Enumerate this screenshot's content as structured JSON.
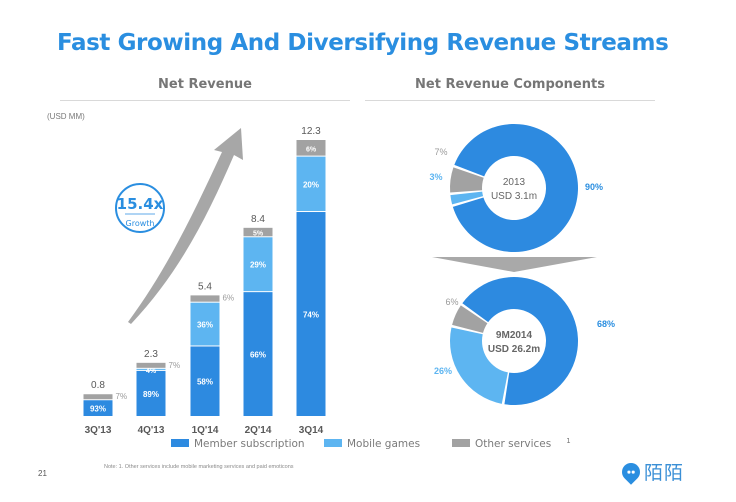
{
  "slide": {
    "title": "Fast Growing And Diversifying Revenue Streams",
    "page_number": "21",
    "footnote": "Note: 1. Other services include mobile marketing services and paid emoticons",
    "logo_text": "陌陌",
    "colors": {
      "title": "#2a8ee0",
      "member": "#2d8ae0",
      "mobile": "#5db5f1",
      "other": "#a2a2a2"
    }
  },
  "chart_data": [
    {
      "type": "bar",
      "stacked": true,
      "title": "Net Revenue",
      "unit_label": "(USD MM)",
      "categories": [
        "3Q'13",
        "4Q'13",
        "1Q'14",
        "2Q'14",
        "3Q14"
      ],
      "totals": [
        0.8,
        2.3,
        5.4,
        8.4,
        12.3
      ],
      "series": [
        {
          "name": "Member subscription",
          "key": "member",
          "values_pct": [
            93,
            89,
            58,
            66,
            74
          ]
        },
        {
          "name": "Mobile games",
          "key": "mobile",
          "values_pct": [
            0,
            4,
            36,
            29,
            20
          ]
        },
        {
          "name": "Other services",
          "key": "other",
          "values_pct": [
            7,
            7,
            6,
            5,
            6
          ]
        }
      ],
      "segment_labels": [
        {
          "member": "93%",
          "mobile": "",
          "other": "7%"
        },
        {
          "member": "89%",
          "mobile": "4%",
          "other": "7%"
        },
        {
          "member": "58%",
          "mobile": "36%",
          "other": "6%"
        },
        {
          "member": "66%",
          "mobile": "29%",
          "other": "5%"
        },
        {
          "member": "74%",
          "mobile": "20%",
          "other": "6%"
        }
      ],
      "ylim": [
        0,
        12.3
      ],
      "grid": false,
      "growth_badge": {
        "value": "15.4x",
        "label": "Growth"
      },
      "legend": {
        "position": "bottom",
        "items": [
          {
            "label": "Member subscription",
            "key": "member"
          },
          {
            "label": "Mobile games",
            "key": "mobile"
          },
          {
            "label": "Other services",
            "key": "other",
            "superscript": "1"
          }
        ]
      }
    },
    {
      "type": "pie",
      "donut": true,
      "title": "Net Revenue Components",
      "charts": [
        {
          "center_line1": "2013",
          "center_line2": "USD 3.1m",
          "slices": [
            {
              "name": "Member subscription",
              "key": "member",
              "value": 90,
              "label": "90%"
            },
            {
              "name": "Mobile games",
              "key": "mobile",
              "value": 3,
              "label": "3%"
            },
            {
              "name": "Other services",
              "key": "other",
              "value": 7,
              "label": "7%"
            }
          ]
        },
        {
          "center_line1": "9M2014",
          "center_line2": "USD 26.2m",
          "slices": [
            {
              "name": "Member subscription",
              "key": "member",
              "value": 68,
              "label": "68%"
            },
            {
              "name": "Mobile games",
              "key": "mobile",
              "value": 26,
              "label": "26%"
            },
            {
              "name": "Other services",
              "key": "other",
              "value": 6,
              "label": "6%"
            }
          ]
        }
      ]
    }
  ]
}
